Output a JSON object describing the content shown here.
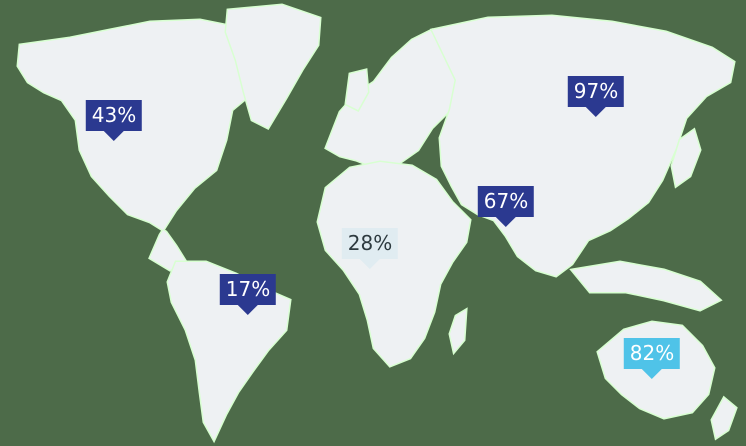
{
  "colors": {
    "ocean": "#4d6b49",
    "land": "#eef1f3",
    "coast": "#d8ffd1",
    "high": "#2b3990",
    "mid": "#4fc3e8",
    "low": "#e0ecf1"
  },
  "markers": [
    {
      "id": "north-america",
      "value": "43%",
      "level": "high"
    },
    {
      "id": "south-america",
      "value": "17%",
      "level": "high"
    },
    {
      "id": "africa",
      "value": "28%",
      "level": "low"
    },
    {
      "id": "middle-east",
      "value": "67%",
      "level": "high"
    },
    {
      "id": "russia",
      "value": "97%",
      "level": "high"
    },
    {
      "id": "australia",
      "value": "82%",
      "level": "mid"
    }
  ]
}
